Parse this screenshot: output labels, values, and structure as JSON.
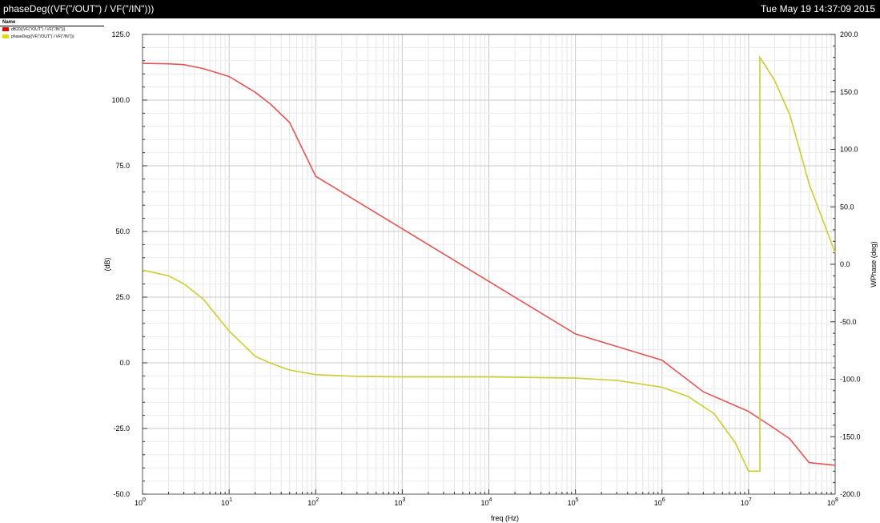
{
  "window": {
    "title": "phaseDeg((VF(\"/OUT\") / VF(\"/IN\")))",
    "timestamp": "Tue May 19 14:37:09 2015"
  },
  "legend": {
    "header": "Name",
    "items": [
      {
        "label": "dB20((VF(\"/OUT\") / VF(\"/IN\")))",
        "color": "#e05555"
      },
      {
        "label": "phaseDeg((VF(\"/OUT\") / VF(\"/IN\")))",
        "color": "#cccc33"
      }
    ]
  },
  "chart_data": {
    "type": "line",
    "xlabel": "freq (Hz)",
    "ylabel": "(dB)",
    "y2label": "WPhase (deg)",
    "xscale": "log",
    "xlim": [
      1,
      100000000
    ],
    "ylim": [
      -50,
      125
    ],
    "y2lim": [
      -200,
      200
    ],
    "grid": true,
    "x_tick_labels": [
      "10^0",
      "10^1",
      "10^2",
      "10^3",
      "10^4",
      "10^5",
      "10^6",
      "10^7",
      "10^8"
    ],
    "y_tick_labels": [
      "125.0",
      "100.0",
      "75.0",
      "50.0",
      "25.0",
      "0.0",
      "-25.0",
      "-50.0"
    ],
    "y2_tick_labels": [
      "200.0",
      "150.0",
      "100.0",
      "50.0",
      "0.0",
      "-50.0",
      "-100.0",
      "-150.0",
      "-200.0"
    ],
    "series": [
      {
        "name": "dB20((VF(\"/OUT\") / VF(\"/IN\")))",
        "color": "#e05555",
        "axis": "left",
        "x": [
          1,
          2,
          3,
          5,
          10,
          20,
          30,
          50,
          100,
          1000,
          10000,
          100000,
          1000000,
          3000000,
          10000000,
          20000000,
          30000000,
          50000000,
          100000000
        ],
        "y": [
          114,
          113.8,
          113.5,
          112,
          109,
          103,
          98.5,
          91.5,
          71,
          51,
          31,
          11,
          1,
          -11,
          -18.5,
          -25,
          -29,
          -38,
          -39
        ]
      },
      {
        "name": "phaseDeg((VF(\"/OUT\") / VF(\"/IN\")))",
        "color": "#cccc33",
        "axis": "right",
        "x": [
          1,
          2,
          3,
          5,
          10,
          20,
          30,
          50,
          100,
          300,
          1000,
          10000,
          100000,
          300000,
          1000000,
          2000000,
          4000000,
          7000000,
          10000000,
          13500000,
          13500001,
          15000000,
          20000000,
          30000000,
          50000000,
          100000000
        ],
        "y": [
          -5,
          -10,
          -17,
          -30,
          -58,
          -80,
          -86,
          -92,
          -96,
          -97.5,
          -98,
          -98,
          -99,
          -101,
          -107,
          -115,
          -130,
          -155,
          -180,
          -180,
          180,
          175,
          160,
          130,
          70,
          10
        ]
      }
    ]
  }
}
